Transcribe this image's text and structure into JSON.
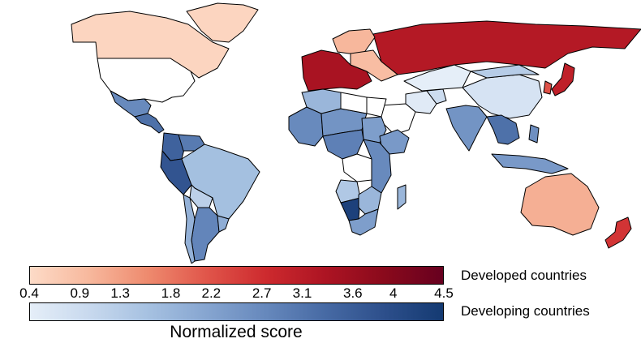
{
  "map": {
    "countries": [
      {
        "name": "Canada",
        "category": "developed",
        "score": 0.5
      },
      {
        "name": "Greenland",
        "category": "developed",
        "score": 0.5
      },
      {
        "name": "United States",
        "category": "none"
      },
      {
        "name": "Mexico",
        "category": "developing",
        "score": 2.7
      },
      {
        "name": "Central America",
        "category": "developing",
        "score": 3.2
      },
      {
        "name": "Colombia",
        "category": "developing",
        "score": 3.5
      },
      {
        "name": "Venezuela",
        "category": "developing",
        "score": 3.0
      },
      {
        "name": "Peru",
        "category": "developing",
        "score": 3.8
      },
      {
        "name": "Brazil",
        "category": "developing",
        "score": 1.6
      },
      {
        "name": "Bolivia",
        "category": "developing",
        "score": 1.2
      },
      {
        "name": "Argentina",
        "category": "developing",
        "score": 2.8
      },
      {
        "name": "Chile",
        "category": "developing",
        "score": 1.9
      },
      {
        "name": "Uruguay",
        "category": "developing",
        "score": 2.0
      },
      {
        "name": "Russia",
        "category": "developed",
        "score": 3.2
      },
      {
        "name": "Western Europe",
        "category": "developed",
        "score": 3.4
      },
      {
        "name": "Scandinavia",
        "category": "developed",
        "score": 1.0
      },
      {
        "name": "Eastern Europe",
        "category": "developed",
        "score": 0.9
      },
      {
        "name": "Japan",
        "category": "developed",
        "score": 3.0
      },
      {
        "name": "South Korea",
        "category": "developed",
        "score": 2.2
      },
      {
        "name": "Australia",
        "category": "developed",
        "score": 1.1
      },
      {
        "name": "New Zealand",
        "category": "developed",
        "score": 2.6
      },
      {
        "name": "China",
        "category": "developing",
        "score": 0.7
      },
      {
        "name": "Mongolia",
        "category": "developing",
        "score": 1.3
      },
      {
        "name": "Kazakhstan",
        "category": "developing",
        "score": 0.3
      },
      {
        "name": "India",
        "category": "developing",
        "score": 2.5
      },
      {
        "name": "Southeast Asia",
        "category": "developing",
        "score": 3.2
      },
      {
        "name": "Indonesia",
        "category": "developing",
        "score": 2.4
      },
      {
        "name": "Philippines",
        "category": "developing",
        "score": 2.6
      },
      {
        "name": "Iran",
        "category": "developing",
        "score": 0.5
      },
      {
        "name": "Afghanistan",
        "category": "developing",
        "score": 0.9
      },
      {
        "name": "Saudi Arabia",
        "category": "none"
      },
      {
        "name": "West Africa",
        "category": "developing",
        "score": 2.7
      },
      {
        "name": "Sahel",
        "category": "developing",
        "score": 2.5
      },
      {
        "name": "North Africa",
        "category": "developing",
        "score": 1.8
      },
      {
        "name": "Libya",
        "category": "none"
      },
      {
        "name": "Egypt",
        "category": "none"
      },
      {
        "name": "Sudan",
        "category": "developing",
        "score": 2.3
      },
      {
        "name": "Ethiopia",
        "category": "developing",
        "score": 2.4
      },
      {
        "name": "Central Africa",
        "category": "developing",
        "score": 2.9
      },
      {
        "name": "DR Congo",
        "category": "none"
      },
      {
        "name": "East Africa",
        "category": "developing",
        "score": 2.7
      },
      {
        "name": "Angola",
        "category": "developing",
        "score": 1.4
      },
      {
        "name": "Namibia",
        "category": "developing",
        "score": 4.3
      },
      {
        "name": "Southern Africa",
        "category": "developing",
        "score": 1.8
      },
      {
        "name": "South Africa",
        "category": "developing",
        "score": 2.3
      },
      {
        "name": "Madagascar",
        "category": "developing",
        "score": 1.8
      }
    ]
  },
  "colorbars": {
    "developed": {
      "label": "Developed countries",
      "min": 0.4,
      "max": 4.5,
      "colors": [
        "#fddbc7",
        "#f7b89d",
        "#ee8a6e",
        "#e0554a",
        "#cd2a2e",
        "#ad1423",
        "#8a0a1c",
        "#67001f"
      ]
    },
    "developing": {
      "label": "Developing countries",
      "min": 0.4,
      "max": 4.5,
      "colors": [
        "#e5eef8",
        "#c8d9ee",
        "#a6c1e1",
        "#86a5d0",
        "#6688bc",
        "#476aa4",
        "#2d4f8b",
        "#143a72"
      ]
    },
    "ticks": [
      "0.4",
      "0.9",
      "1.3",
      "1.8",
      "2.2",
      "2.7",
      "3.1",
      "3.6",
      "4",
      "4.5"
    ],
    "tick_values": [
      0.4,
      0.9,
      1.3,
      1.8,
      2.2,
      2.7,
      3.1,
      3.6,
      4.0,
      4.5
    ],
    "axis_title": "Normalized score"
  }
}
